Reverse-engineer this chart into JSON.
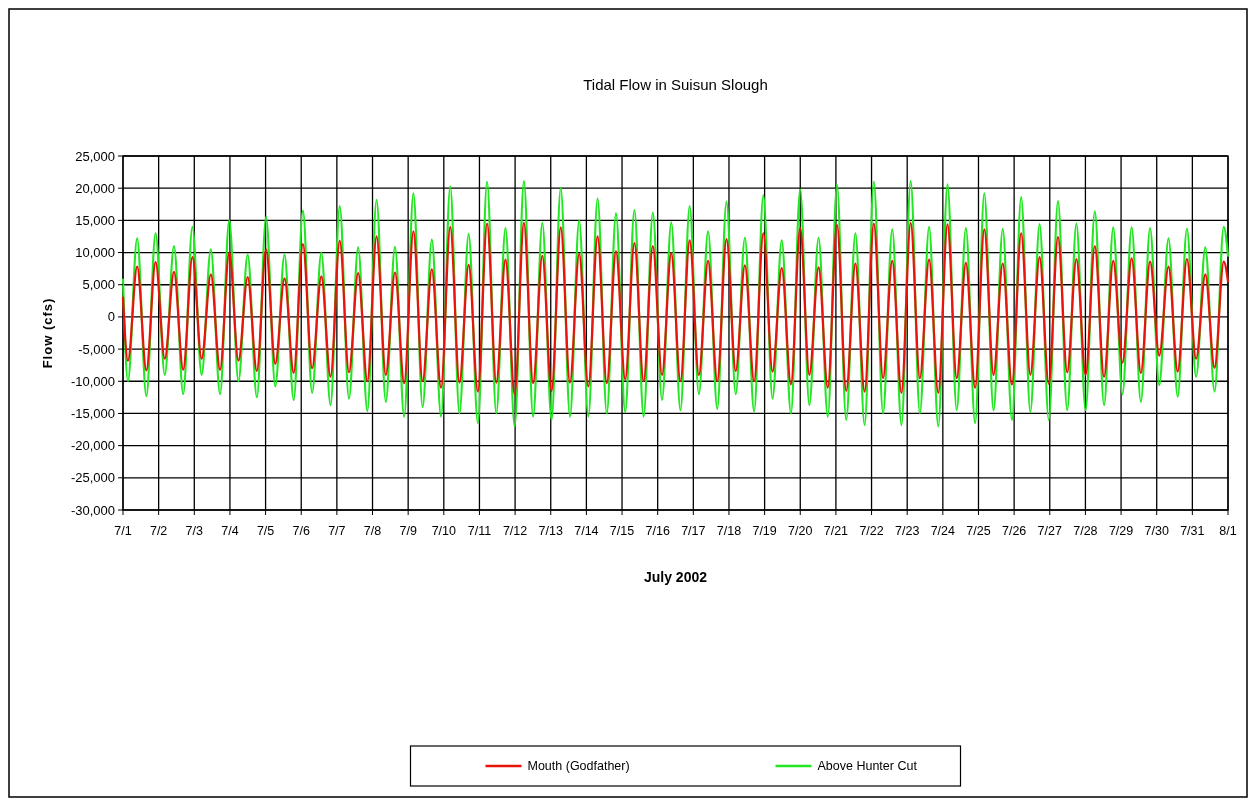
{
  "chart_data": {
    "type": "line",
    "title": "Tidal Flow in Suisun Slough",
    "xlabel": "July 2002",
    "ylabel": "Flow (cfs)",
    "x": [
      "2002-07-01T00:00",
      "2002-07-01T03:20",
      "2002-07-01T09:32",
      "2002-07-01T15:44",
      "2002-07-01T21:56",
      "2002-07-02T04:08",
      "2002-07-02T10:20",
      "2002-07-02T16:32",
      "2002-07-02T22:44",
      "2002-07-03T04:56",
      "2002-07-03T11:08",
      "2002-07-03T17:20",
      "2002-07-03T23:32",
      "2002-07-04T05:44",
      "2002-07-04T11:56",
      "2002-07-04T18:08",
      "2002-07-05T00:20",
      "2002-07-05T06:32",
      "2002-07-05T12:44",
      "2002-07-05T18:56",
      "2002-07-06T01:08",
      "2002-07-06T07:20",
      "2002-07-06T13:32",
      "2002-07-06T19:44",
      "2002-07-07T01:56",
      "2002-07-07T08:08",
      "2002-07-07T14:20",
      "2002-07-07T20:32",
      "2002-07-08T02:44",
      "2002-07-08T08:56",
      "2002-07-08T15:08",
      "2002-07-08T21:20",
      "2002-07-09T03:32",
      "2002-07-09T09:44",
      "2002-07-09T15:56",
      "2002-07-09T22:08",
      "2002-07-10T04:20",
      "2002-07-10T10:32",
      "2002-07-10T16:44",
      "2002-07-10T22:56",
      "2002-07-11T05:08",
      "2002-07-11T11:20",
      "2002-07-11T17:32",
      "2002-07-11T23:44",
      "2002-07-12T05:56",
      "2002-07-12T12:08",
      "2002-07-12T18:20",
      "2002-07-13T00:32",
      "2002-07-13T06:44",
      "2002-07-13T12:56",
      "2002-07-13T19:08",
      "2002-07-14T01:20",
      "2002-07-14T07:32",
      "2002-07-14T13:44",
      "2002-07-14T19:56",
      "2002-07-15T02:08",
      "2002-07-15T08:20",
      "2002-07-15T14:32",
      "2002-07-15T20:44",
      "2002-07-16T02:56",
      "2002-07-16T09:08",
      "2002-07-16T15:20",
      "2002-07-16T21:32",
      "2002-07-17T03:44",
      "2002-07-17T09:56",
      "2002-07-17T16:08",
      "2002-07-17T22:20",
      "2002-07-18T04:32",
      "2002-07-18T10:44",
      "2002-07-18T16:56",
      "2002-07-18T23:08",
      "2002-07-19T05:20",
      "2002-07-19T11:32",
      "2002-07-19T17:44",
      "2002-07-19T23:56",
      "2002-07-20T06:08",
      "2002-07-20T12:20",
      "2002-07-20T18:32",
      "2002-07-21T00:44",
      "2002-07-21T06:56",
      "2002-07-21T13:08",
      "2002-07-21T19:20",
      "2002-07-22T01:32",
      "2002-07-22T07:44",
      "2002-07-22T13:56",
      "2002-07-22T20:08",
      "2002-07-23T02:20",
      "2002-07-23T08:32",
      "2002-07-23T14:44",
      "2002-07-23T20:56",
      "2002-07-24T03:08",
      "2002-07-24T09:20",
      "2002-07-24T15:32",
      "2002-07-24T21:44",
      "2002-07-25T03:56",
      "2002-07-25T10:08",
      "2002-07-25T16:20",
      "2002-07-25T22:32",
      "2002-07-26T04:44",
      "2002-07-26T10:56",
      "2002-07-26T17:08",
      "2002-07-26T23:20",
      "2002-07-27T05:32",
      "2002-07-27T11:44",
      "2002-07-27T17:56",
      "2002-07-28T00:08",
      "2002-07-28T06:20",
      "2002-07-28T12:32",
      "2002-07-28T18:44",
      "2002-07-29T00:56",
      "2002-07-29T07:08",
      "2002-07-29T13:20",
      "2002-07-29T19:32",
      "2002-07-30T01:44",
      "2002-07-30T07:56",
      "2002-07-30T14:08",
      "2002-07-30T20:20",
      "2002-07-31T02:32",
      "2002-07-31T08:44",
      "2002-07-31T14:56",
      "2002-07-31T21:08",
      "2002-08-01T00:00"
    ],
    "series": [
      {
        "name": "Above Hunter Cut",
        "color": "#22e622",
        "values": [
          5800,
          -10000,
          12200,
          -12300,
          13000,
          -9000,
          11000,
          -12000,
          14000,
          -9000,
          10500,
          -12000,
          15000,
          -10000,
          9700,
          -12500,
          15500,
          -10800,
          9700,
          -12900,
          16500,
          -11800,
          10000,
          -13700,
          17200,
          -12700,
          10800,
          -14600,
          18200,
          -13200,
          10900,
          -15500,
          19200,
          -14000,
          12000,
          -15500,
          20300,
          -15000,
          12900,
          -16500,
          21000,
          -15000,
          13800,
          -17000,
          21100,
          -15500,
          14600,
          -16000,
          20000,
          -15500,
          15000,
          -15500,
          18400,
          -15000,
          16100,
          -14800,
          16600,
          -15500,
          16200,
          -12900,
          14700,
          -14500,
          17200,
          -12000,
          13300,
          -14300,
          17900,
          -12000,
          12300,
          -14700,
          18900,
          -12700,
          11900,
          -15000,
          19800,
          -13700,
          12300,
          -15500,
          20500,
          -16000,
          13000,
          -16800,
          21000,
          -15000,
          13600,
          -16800,
          21100,
          -15000,
          14000,
          -17000,
          20600,
          -14500,
          13800,
          -16500,
          19200,
          -14500,
          13700,
          -16000,
          18600,
          -14800,
          14400,
          -16000,
          18000,
          -14500,
          14500,
          -14500,
          16400,
          -13700,
          13900,
          -12000,
          13900,
          -13200,
          13800,
          -10600,
          12200,
          -12400,
          13700,
          -9300,
          10800,
          -11600,
          14000,
          9500
        ]
      },
      {
        "name": "Mouth (Godfather)",
        "color": "#e8140c",
        "values": [
          3000,
          -6800,
          7800,
          -8300,
          8500,
          -6500,
          7000,
          -8200,
          9300,
          -6500,
          6600,
          -8200,
          10000,
          -6800,
          6200,
          -8400,
          10500,
          -7300,
          6000,
          -8700,
          11300,
          -8000,
          6300,
          -9300,
          11800,
          -8600,
          6800,
          -10000,
          12500,
          -9000,
          6900,
          -10300,
          13300,
          -10000,
          7400,
          -11000,
          14000,
          -10200,
          8100,
          -11600,
          14500,
          -10200,
          8900,
          -12000,
          14600,
          -10300,
          9500,
          -11500,
          13900,
          -10200,
          9800,
          -10800,
          12500,
          -10300,
          10200,
          -9700,
          11500,
          -10000,
          11000,
          -9000,
          9900,
          -10000,
          11900,
          -9000,
          8700,
          -10000,
          12100,
          -8400,
          8000,
          -10000,
          13000,
          -8500,
          7600,
          -10500,
          13800,
          -9000,
          7700,
          -11000,
          14300,
          -11500,
          8300,
          -11600,
          14500,
          -9500,
          8700,
          -11800,
          14600,
          -9500,
          8900,
          -11800,
          14400,
          -9500,
          8400,
          -11000,
          13600,
          -9000,
          8300,
          -10500,
          13000,
          -9000,
          9300,
          -10400,
          12400,
          -8600,
          9000,
          -9000,
          11000,
          -9300,
          8700,
          -7100,
          9100,
          -8700,
          8600,
          -6000,
          7800,
          -8500,
          9000,
          -6500,
          6600,
          -7900,
          8600,
          5500
        ]
      }
    ],
    "xlim": [
      "2002-07-01",
      "2002-08-01"
    ],
    "xticks": [
      {
        "value": "2002-07-01",
        "label": "7/1"
      },
      {
        "value": "2002-07-02",
        "label": "7/2"
      },
      {
        "value": "2002-07-03",
        "label": "7/3"
      },
      {
        "value": "2002-07-04",
        "label": "7/4"
      },
      {
        "value": "2002-07-05",
        "label": "7/5"
      },
      {
        "value": "2002-07-06",
        "label": "7/6"
      },
      {
        "value": "2002-07-07",
        "label": "7/7"
      },
      {
        "value": "2002-07-08",
        "label": "7/8"
      },
      {
        "value": "2002-07-09",
        "label": "7/9"
      },
      {
        "value": "2002-07-10",
        "label": "7/10"
      },
      {
        "value": "2002-07-11",
        "label": "7/11"
      },
      {
        "value": "2002-07-12",
        "label": "7/12"
      },
      {
        "value": "2002-07-13",
        "label": "7/13"
      },
      {
        "value": "2002-07-14",
        "label": "7/14"
      },
      {
        "value": "2002-07-15",
        "label": "7/15"
      },
      {
        "value": "2002-07-16",
        "label": "7/16"
      },
      {
        "value": "2002-07-17",
        "label": "7/17"
      },
      {
        "value": "2002-07-18",
        "label": "7/18"
      },
      {
        "value": "2002-07-19",
        "label": "7/19"
      },
      {
        "value": "2002-07-20",
        "label": "7/20"
      },
      {
        "value": "2002-07-21",
        "label": "7/21"
      },
      {
        "value": "2002-07-22",
        "label": "7/22"
      },
      {
        "value": "2002-07-23",
        "label": "7/23"
      },
      {
        "value": "2002-07-24",
        "label": "7/24"
      },
      {
        "value": "2002-07-25",
        "label": "7/25"
      },
      {
        "value": "2002-07-26",
        "label": "7/26"
      },
      {
        "value": "2002-07-27",
        "label": "7/27"
      },
      {
        "value": "2002-07-28",
        "label": "7/28"
      },
      {
        "value": "2002-07-29",
        "label": "7/29"
      },
      {
        "value": "2002-07-30",
        "label": "7/30"
      },
      {
        "value": "2002-07-31",
        "label": "7/31"
      },
      {
        "value": "2002-08-01",
        "label": "8/1"
      }
    ],
    "ylim": [
      -30000,
      25000
    ],
    "yticks": [
      {
        "value": -30000,
        "label": "-30,000"
      },
      {
        "value": -25000,
        "label": "-25,000"
      },
      {
        "value": -20000,
        "label": "-20,000"
      },
      {
        "value": -15000,
        "label": "-15,000"
      },
      {
        "value": -10000,
        "label": "-10,000"
      },
      {
        "value": -5000,
        "label": "-5,000"
      },
      0,
      {
        "value": 5000,
        "label": "5,000"
      },
      {
        "value": 10000,
        "label": "10,000"
      },
      {
        "value": 15000,
        "label": "15,000"
      },
      {
        "value": 20000,
        "label": "20,000"
      },
      {
        "value": 25000,
        "label": "25,000"
      }
    ],
    "grid": true,
    "legend": "bottom",
    "marker": "none",
    "line_style": "solid"
  }
}
